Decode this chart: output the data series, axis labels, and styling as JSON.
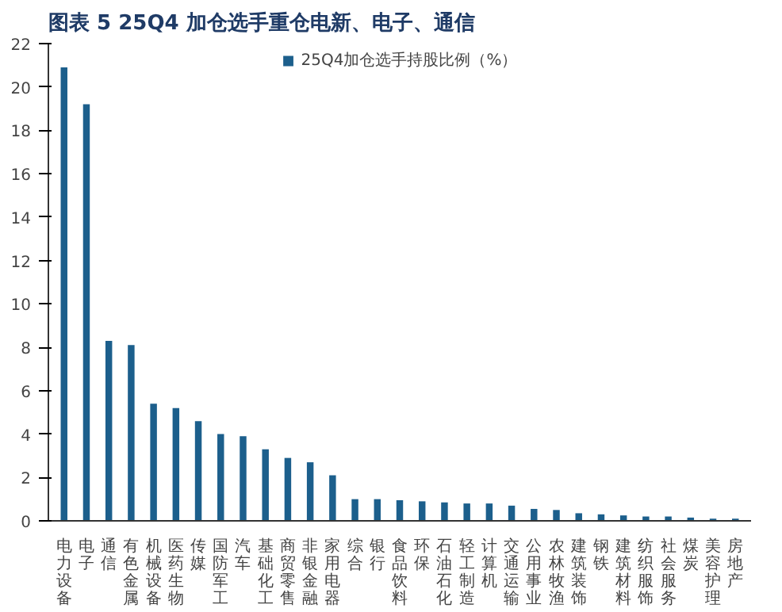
{
  "chart_data": {
    "type": "bar",
    "title": "图表 5   25Q4 加仓选手重仓电新、电子、通信",
    "categories": [
      "电力设备",
      "电子",
      "通信",
      "有色金属",
      "机械设备",
      "医药生物",
      "传媒",
      "国防军工",
      "汽车",
      "基础化工",
      "商贸零售",
      "非银金融",
      "家用电器",
      "综合",
      "银行",
      "食品饮料",
      "环保",
      "石油石化",
      "轻工制造",
      "计算机",
      "交通运输",
      "公用事业",
      "农林牧渔",
      "建筑装饰",
      "钢铁",
      "建筑材料",
      "纺织服饰",
      "社会服务",
      "煤炭",
      "美容护理",
      "房地产"
    ],
    "series": [
      {
        "name": "25Q4加仓选手持股比例（%）",
        "color": "#1c5f8c",
        "values": [
          20.9,
          19.2,
          8.3,
          8.1,
          5.4,
          5.2,
          4.6,
          4.0,
          3.9,
          3.3,
          2.9,
          2.7,
          2.1,
          1.0,
          1.0,
          0.95,
          0.9,
          0.85,
          0.8,
          0.8,
          0.7,
          0.55,
          0.5,
          0.35,
          0.3,
          0.25,
          0.2,
          0.2,
          0.15,
          0.1,
          0.1
        ]
      }
    ],
    "ylim": [
      0,
      22
    ],
    "yticks": [
      0,
      2,
      4,
      6,
      8,
      10,
      12,
      14,
      16,
      18,
      20,
      22
    ],
    "grid": false,
    "legend": "top"
  }
}
